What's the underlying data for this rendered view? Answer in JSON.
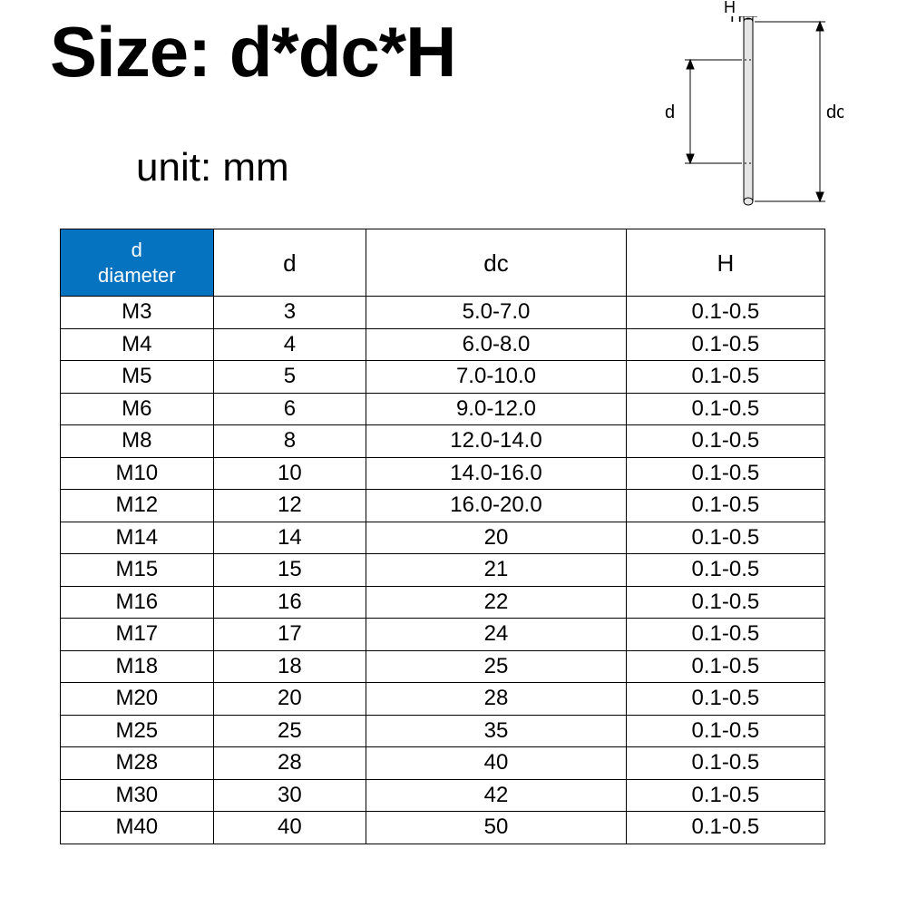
{
  "title": "Size: d*dc*H",
  "unit_label": "unit: mm",
  "diagram": {
    "labels": {
      "h": "H",
      "d": "d",
      "dc": "dc"
    },
    "washer_color": "#e5e5e5",
    "washer_edge": "#000000",
    "dim_line_color": "#000000"
  },
  "table": {
    "header_bg": "#0673c1",
    "header_fg": "#ffffff",
    "border_color": "#000000",
    "columns": [
      {
        "label_line1": "d",
        "label_line2": "diameter"
      },
      {
        "label": "d"
      },
      {
        "label": "dc"
      },
      {
        "label": "H"
      }
    ],
    "rows": [
      [
        "M3",
        "3",
        "5.0-7.0",
        "0.1-0.5"
      ],
      [
        "M4",
        "4",
        "6.0-8.0",
        "0.1-0.5"
      ],
      [
        "M5",
        "5",
        "7.0-10.0",
        "0.1-0.5"
      ],
      [
        "M6",
        "6",
        "9.0-12.0",
        "0.1-0.5"
      ],
      [
        "M8",
        "8",
        "12.0-14.0",
        "0.1-0.5"
      ],
      [
        "M10",
        "10",
        "14.0-16.0",
        "0.1-0.5"
      ],
      [
        "M12",
        "12",
        "16.0-20.0",
        "0.1-0.5"
      ],
      [
        "M14",
        "14",
        "20",
        "0.1-0.5"
      ],
      [
        "M15",
        "15",
        "21",
        "0.1-0.5"
      ],
      [
        "M16",
        "16",
        "22",
        "0.1-0.5"
      ],
      [
        "M17",
        "17",
        "24",
        "0.1-0.5"
      ],
      [
        "M18",
        "18",
        "25",
        "0.1-0.5"
      ],
      [
        "M20",
        "20",
        "28",
        "0.1-0.5"
      ],
      [
        "M25",
        "25",
        "35",
        "0.1-0.5"
      ],
      [
        "M28",
        "28",
        "40",
        "0.1-0.5"
      ],
      [
        "M30",
        "30",
        "42",
        "0.1-0.5"
      ],
      [
        "M40",
        "40",
        "50",
        "0.1-0.5"
      ]
    ]
  }
}
